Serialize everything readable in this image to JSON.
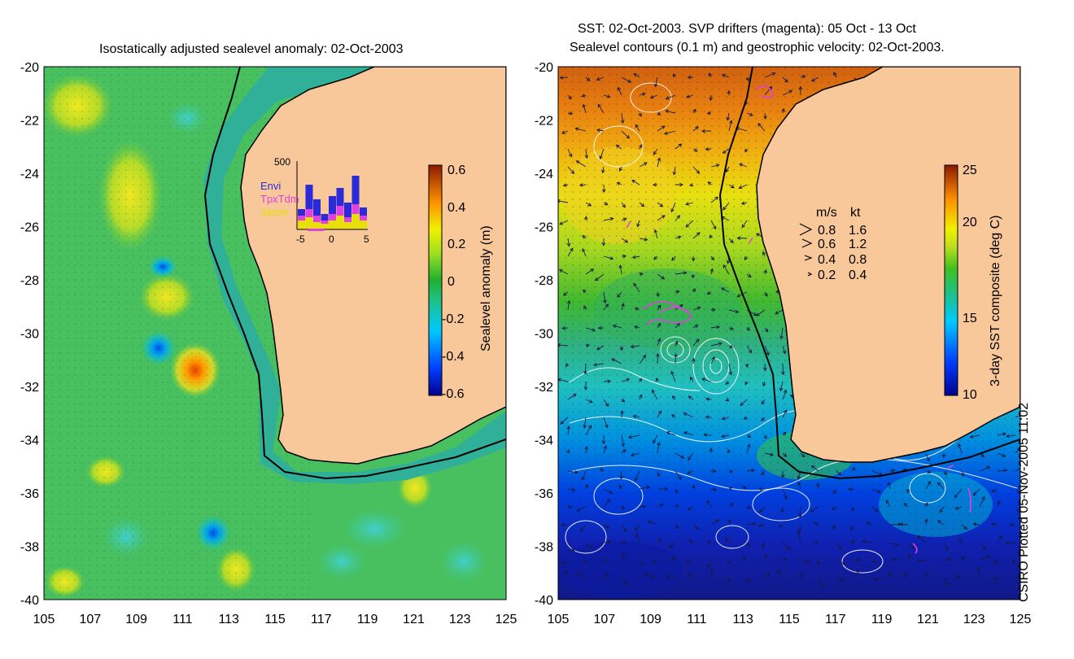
{
  "left_map": {
    "title": "Isostatically adjusted sealevel anomaly: 02-Oct-2003",
    "x_ticks": [
      "105",
      "107",
      "109",
      "111",
      "113",
      "115",
      "117",
      "119",
      "121",
      "123",
      "125"
    ],
    "y_ticks": [
      "-20",
      "-22",
      "-24",
      "-26",
      "-28",
      "-30",
      "-32",
      "-34",
      "-36",
      "-38",
      "-40"
    ],
    "colorbar": {
      "label": "Sealevel anomaly (m)",
      "ticks": [
        "0.6",
        "0.4",
        "0.2",
        "0",
        "-0.2",
        "-0.4",
        "-0.6"
      ]
    },
    "inset": {
      "y_max_label": "500",
      "x_ticks": [
        "-5",
        "0",
        "5"
      ],
      "legend": [
        {
          "name": "Envi",
          "color": "#2a2ad8"
        },
        {
          "name": "TpxTdm",
          "color": "#e040e0"
        },
        {
          "name": "Jason",
          "color": "#e8e000"
        }
      ]
    }
  },
  "right_map": {
    "title_line1": "SST: 02-Oct-2003. SVP drifters (magenta): 05 Oct - 13 Oct",
    "title_line2": "Sealevel contours (0.1 m) and geostrophic velocity: 02-Oct-2003.",
    "x_ticks": [
      "105",
      "107",
      "109",
      "111",
      "113",
      "115",
      "117",
      "119",
      "121",
      "123",
      "125"
    ],
    "y_ticks": [
      "-20",
      "-22",
      "-24",
      "-26",
      "-28",
      "-30",
      "-32",
      "-34",
      "-36",
      "-38",
      "-40"
    ],
    "colorbar": {
      "label": "3-day SST composite (deg C)",
      "ticks": [
        "25",
        "20",
        "15",
        "10"
      ]
    },
    "velocity_legend": {
      "header_ms": "m/s",
      "header_kt": "kt",
      "rows": [
        {
          "ms": "0.8",
          "kt": "1.6"
        },
        {
          "ms": "0.6",
          "kt": "1.2"
        },
        {
          "ms": "0.4",
          "kt": "0.8"
        },
        {
          "ms": "0.2",
          "kt": "0.4"
        }
      ]
    }
  },
  "footer": {
    "credit": "CSIRO Plotted 05-Nov-2005 11:02"
  },
  "colors": {
    "land": "#f8c89a",
    "coast": "#000000",
    "drifter": "#e040e0"
  }
}
